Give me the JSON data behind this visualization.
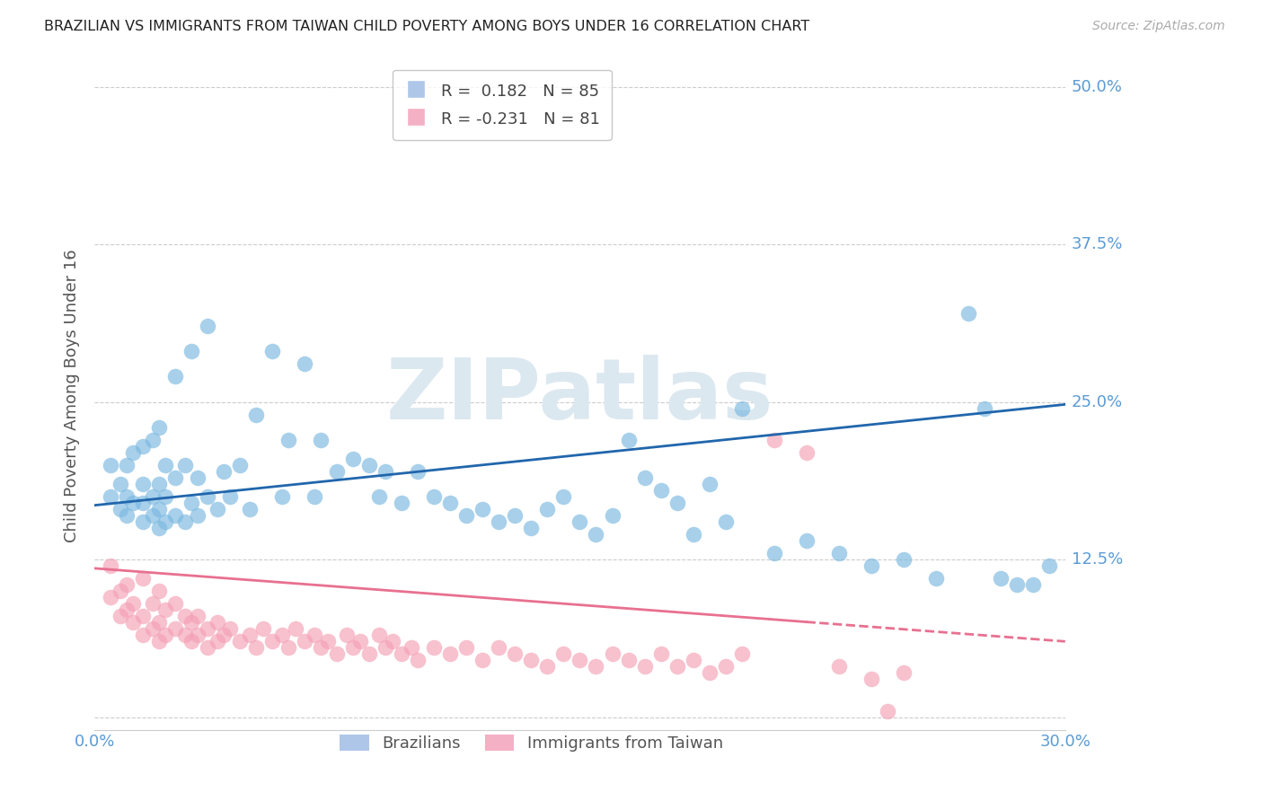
{
  "title": "BRAZILIAN VS IMMIGRANTS FROM TAIWAN CHILD POVERTY AMONG BOYS UNDER 16 CORRELATION CHART",
  "source": "Source: ZipAtlas.com",
  "ylabel": "Child Poverty Among Boys Under 16",
  "xlim": [
    0.0,
    0.3
  ],
  "ylim": [
    -0.01,
    0.52
  ],
  "yticks": [
    0.0,
    0.125,
    0.25,
    0.375,
    0.5
  ],
  "yticklabels": [
    "",
    "12.5%",
    "25.0%",
    "37.5%",
    "50.0%"
  ],
  "xticks": [
    0.0,
    0.05,
    0.1,
    0.15,
    0.2,
    0.25,
    0.3
  ],
  "xticklabels": [
    "0.0%",
    "",
    "",
    "",
    "",
    "",
    "30.0%"
  ],
  "brazilian_R": 0.182,
  "brazilian_N": 85,
  "taiwan_R": -0.231,
  "taiwan_N": 81,
  "blue_color": "#7ab8e0",
  "pink_color": "#f4a0b5",
  "blue_line_color": "#2166ac",
  "pink_line_color": "#e87090",
  "grid_color": "#cccccc",
  "right_label_color": "#5b9bd5",
  "watermark_color": "#dce8f0",
  "legend_box_blue": "#aec6e8",
  "legend_box_pink": "#f4b0c5",
  "blue_scatter_x": [
    0.005,
    0.005,
    0.008,
    0.008,
    0.01,
    0.01,
    0.01,
    0.012,
    0.012,
    0.015,
    0.015,
    0.015,
    0.015,
    0.018,
    0.018,
    0.018,
    0.02,
    0.02,
    0.02,
    0.02,
    0.022,
    0.022,
    0.022,
    0.025,
    0.025,
    0.025,
    0.028,
    0.028,
    0.03,
    0.03,
    0.032,
    0.032,
    0.035,
    0.035,
    0.038,
    0.04,
    0.042,
    0.045,
    0.048,
    0.05,
    0.055,
    0.058,
    0.06,
    0.065,
    0.068,
    0.07,
    0.075,
    0.08,
    0.085,
    0.088,
    0.09,
    0.095,
    0.1,
    0.105,
    0.11,
    0.115,
    0.12,
    0.125,
    0.13,
    0.135,
    0.14,
    0.145,
    0.15,
    0.155,
    0.16,
    0.165,
    0.17,
    0.175,
    0.18,
    0.185,
    0.19,
    0.195,
    0.2,
    0.21,
    0.22,
    0.23,
    0.24,
    0.25,
    0.26,
    0.27,
    0.275,
    0.28,
    0.285,
    0.29,
    0.295
  ],
  "blue_scatter_y": [
    0.175,
    0.2,
    0.165,
    0.185,
    0.16,
    0.175,
    0.2,
    0.17,
    0.21,
    0.155,
    0.17,
    0.185,
    0.215,
    0.16,
    0.175,
    0.22,
    0.15,
    0.165,
    0.185,
    0.23,
    0.155,
    0.175,
    0.2,
    0.16,
    0.19,
    0.27,
    0.155,
    0.2,
    0.17,
    0.29,
    0.16,
    0.19,
    0.175,
    0.31,
    0.165,
    0.195,
    0.175,
    0.2,
    0.165,
    0.24,
    0.29,
    0.175,
    0.22,
    0.28,
    0.175,
    0.22,
    0.195,
    0.205,
    0.2,
    0.175,
    0.195,
    0.17,
    0.195,
    0.175,
    0.17,
    0.16,
    0.165,
    0.155,
    0.16,
    0.15,
    0.165,
    0.175,
    0.155,
    0.145,
    0.16,
    0.22,
    0.19,
    0.18,
    0.17,
    0.145,
    0.185,
    0.155,
    0.245,
    0.13,
    0.14,
    0.13,
    0.12,
    0.125,
    0.11,
    0.32,
    0.245,
    0.11,
    0.105,
    0.105,
    0.12
  ],
  "pink_scatter_x": [
    0.005,
    0.005,
    0.008,
    0.008,
    0.01,
    0.01,
    0.012,
    0.012,
    0.015,
    0.015,
    0.015,
    0.018,
    0.018,
    0.02,
    0.02,
    0.02,
    0.022,
    0.022,
    0.025,
    0.025,
    0.028,
    0.028,
    0.03,
    0.03,
    0.032,
    0.032,
    0.035,
    0.035,
    0.038,
    0.038,
    0.04,
    0.042,
    0.045,
    0.048,
    0.05,
    0.052,
    0.055,
    0.058,
    0.06,
    0.062,
    0.065,
    0.068,
    0.07,
    0.072,
    0.075,
    0.078,
    0.08,
    0.082,
    0.085,
    0.088,
    0.09,
    0.092,
    0.095,
    0.098,
    0.1,
    0.105,
    0.11,
    0.115,
    0.12,
    0.125,
    0.13,
    0.135,
    0.14,
    0.145,
    0.15,
    0.155,
    0.16,
    0.165,
    0.17,
    0.175,
    0.18,
    0.185,
    0.19,
    0.195,
    0.2,
    0.21,
    0.22,
    0.23,
    0.24,
    0.245,
    0.25
  ],
  "pink_scatter_y": [
    0.12,
    0.095,
    0.1,
    0.08,
    0.085,
    0.105,
    0.09,
    0.075,
    0.065,
    0.08,
    0.11,
    0.07,
    0.09,
    0.06,
    0.075,
    0.1,
    0.065,
    0.085,
    0.07,
    0.09,
    0.065,
    0.08,
    0.06,
    0.075,
    0.065,
    0.08,
    0.055,
    0.07,
    0.06,
    0.075,
    0.065,
    0.07,
    0.06,
    0.065,
    0.055,
    0.07,
    0.06,
    0.065,
    0.055,
    0.07,
    0.06,
    0.065,
    0.055,
    0.06,
    0.05,
    0.065,
    0.055,
    0.06,
    0.05,
    0.065,
    0.055,
    0.06,
    0.05,
    0.055,
    0.045,
    0.055,
    0.05,
    0.055,
    0.045,
    0.055,
    0.05,
    0.045,
    0.04,
    0.05,
    0.045,
    0.04,
    0.05,
    0.045,
    0.04,
    0.05,
    0.04,
    0.045,
    0.035,
    0.04,
    0.05,
    0.22,
    0.21,
    0.04,
    0.03,
    0.005,
    0.035
  ]
}
